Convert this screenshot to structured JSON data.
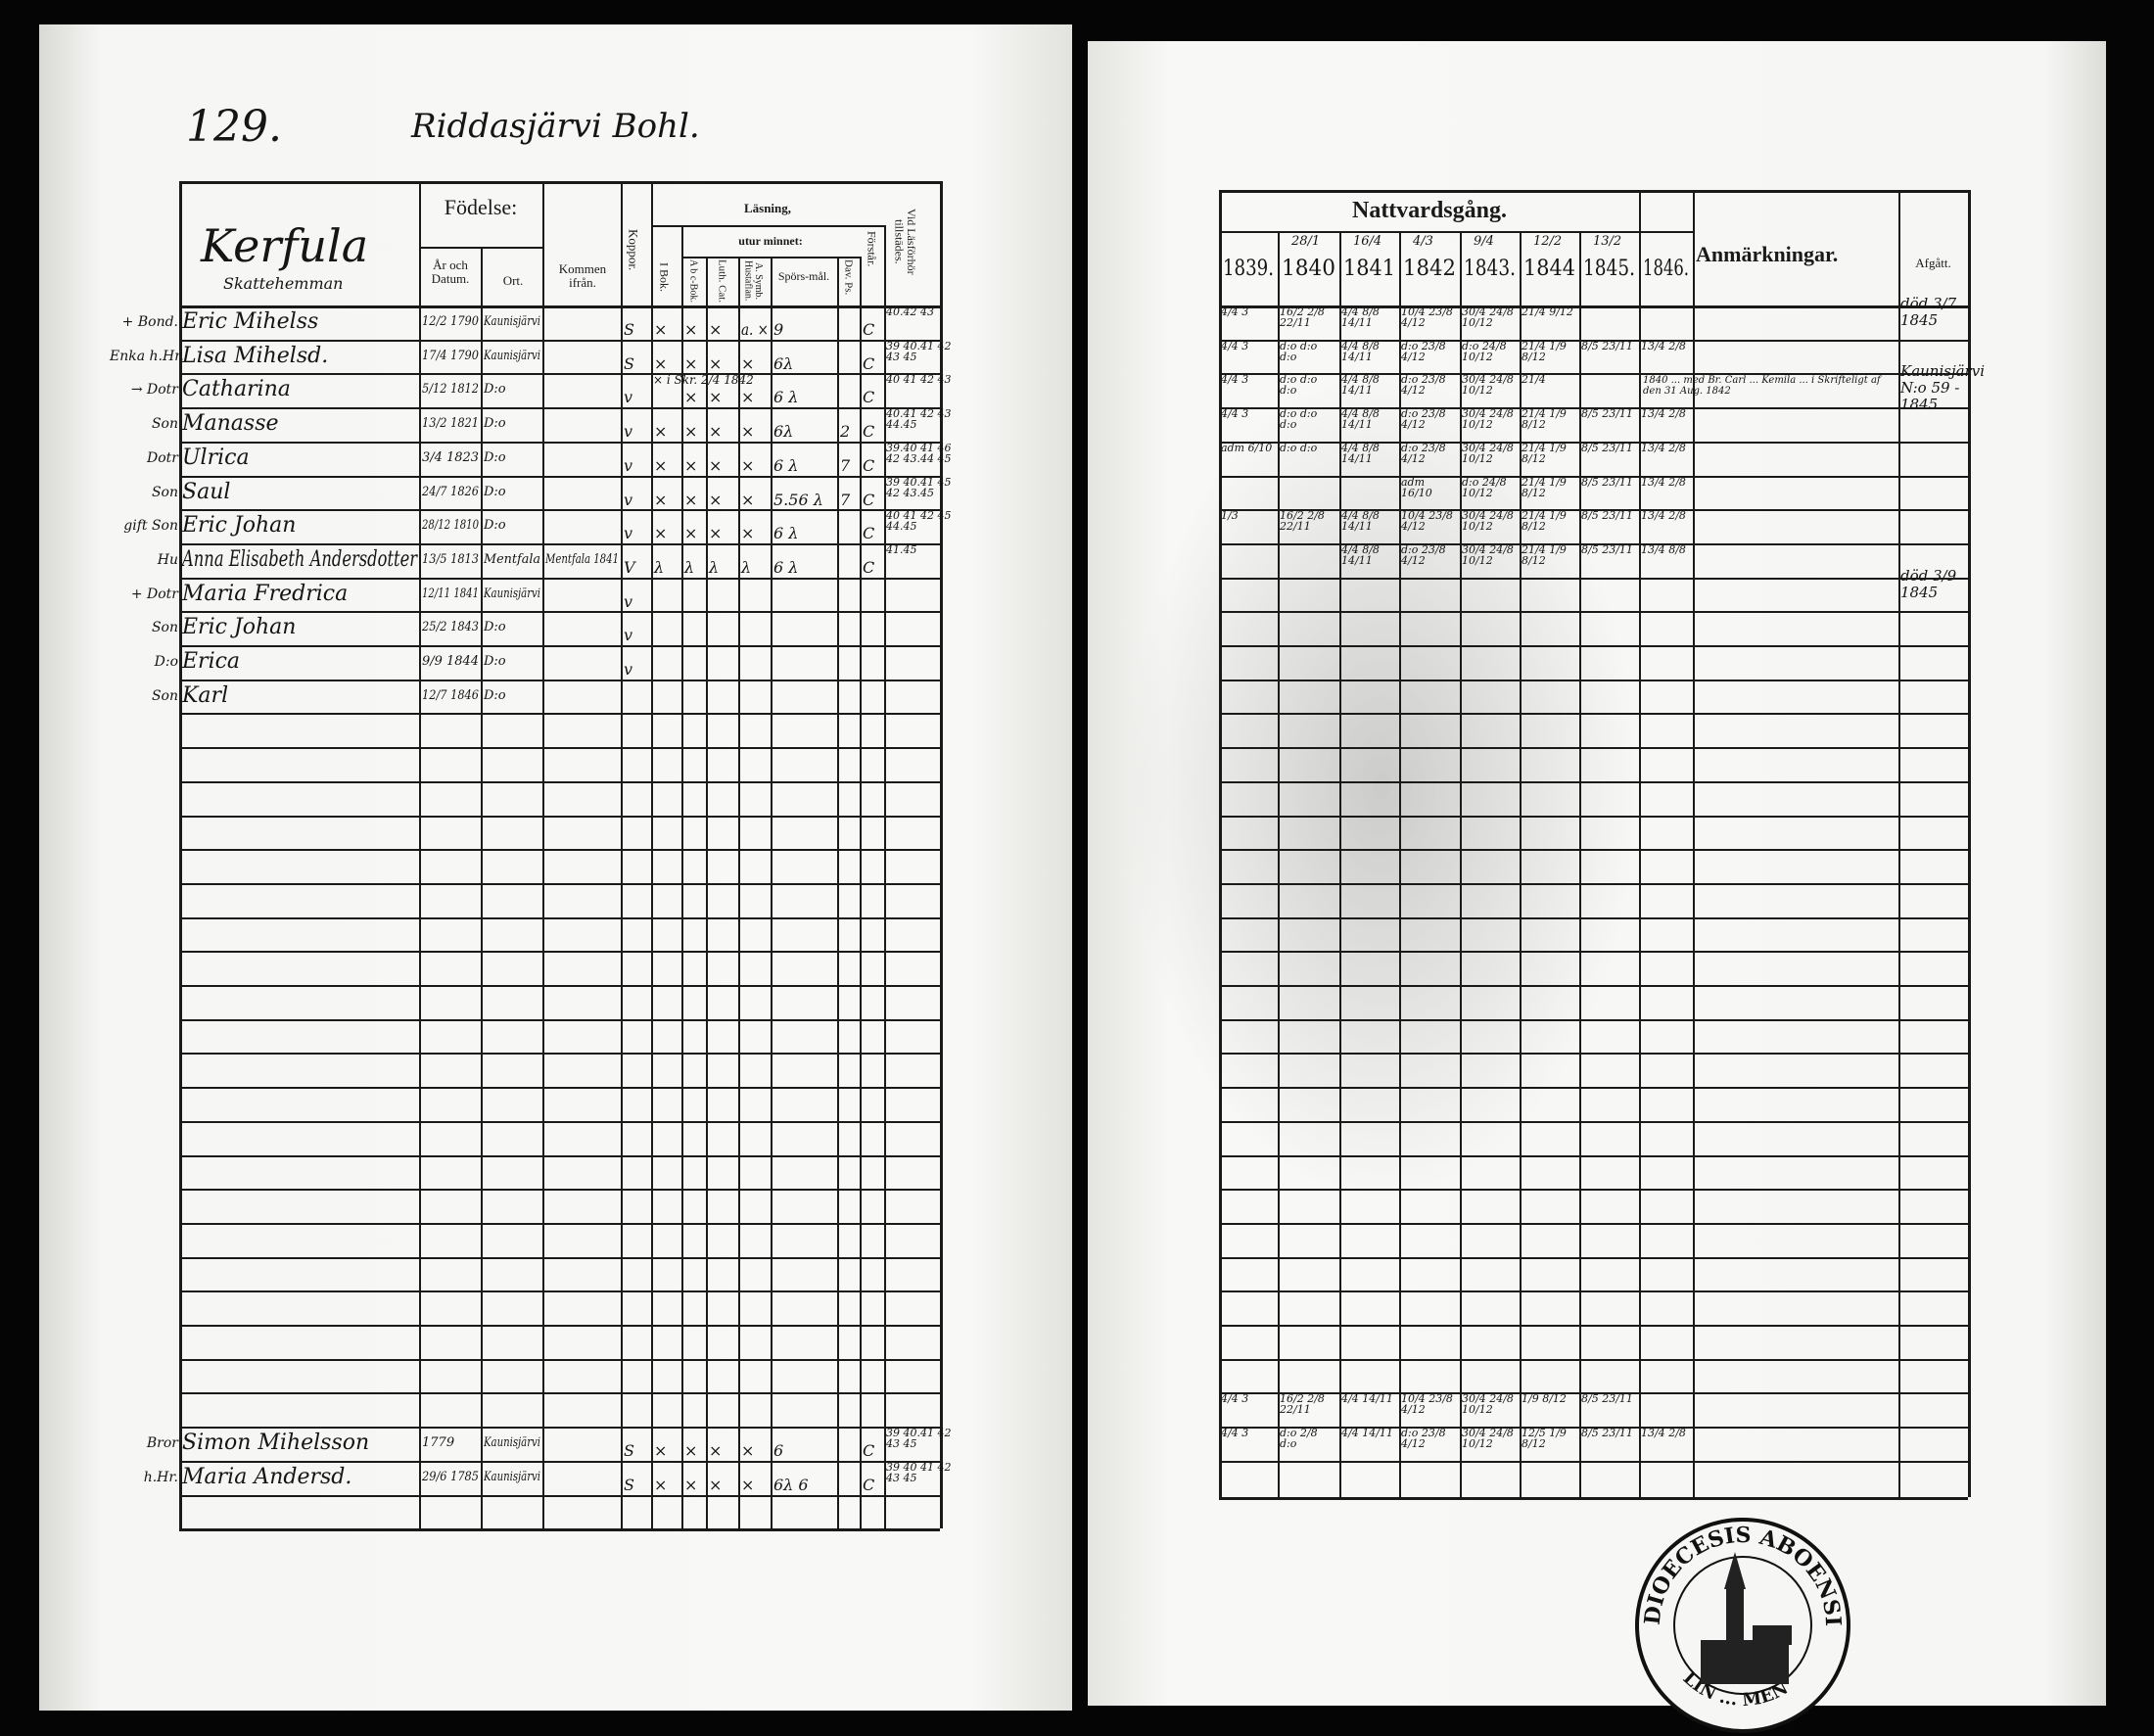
{
  "left": {
    "page_number": "129.",
    "village": "Riddasjärvi Bohl.",
    "header": {
      "farm_name": "Kerfula",
      "farm_type": "Skattehemman",
      "birth": "Födelse:",
      "birth_date": "År och Datum.",
      "birth_place": "Ort.",
      "came_from": "Kommen ifrån.",
      "vaccinated": "Koppor.",
      "reading": "Läsning,",
      "by_heart": "utur minnet:",
      "i_bok": "I Bok.",
      "abc_bok": "A b c-Bok.",
      "luth_cat": "Luth. Cat.",
      "a_symb": "A. Symb. Hustaflan.",
      "sporsmal": "Spörs-mål.",
      "dav_ps": "Dav. Ps.",
      "forstar": "Förstår.",
      "lasforhor": "Vid Läsförhör tillstädes."
    },
    "rows": [
      {
        "title": "+ Bond.",
        "name": "Eric Mihelss",
        "born": "12/2 1790",
        "place": "Kaunisjärvi",
        "came_from": "",
        "vaccinated": "S",
        "i_bok": "×",
        "abc_bok": "×",
        "luth_cat": "×",
        "a_symb": "a. ×",
        "sporsmal": "9",
        "dav_ps": "",
        "forstar": "C",
        "lasforhor": "40.42 43"
      },
      {
        "title": "Enka h.Hr.",
        "name": "Lisa Mihelsd.",
        "born": "17/4 1790",
        "place": "Kaunisjärvi",
        "came_from": "",
        "vaccinated": "S",
        "i_bok": "×",
        "abc_bok": "×",
        "luth_cat": "×",
        "a_symb": "×",
        "sporsmal": "6λ",
        "dav_ps": "",
        "forstar": "C",
        "lasforhor": "39 40.41 42 43 45"
      },
      {
        "title": "→ Dotr",
        "name": "Catharina",
        "born": "5/12 1812",
        "place": "D:o",
        "came_from": "",
        "vaccinated": "v",
        "i_bok": "× i Skr. 2/4 1842",
        "abc_bok": "×",
        "luth_cat": "×",
        "a_symb": "×",
        "sporsmal": "6 λ",
        "dav_ps": "",
        "forstar": "C",
        "lasforhor": "40 41 42 43"
      },
      {
        "title": "Son",
        "name": "Manasse",
        "born": "13/2 1821",
        "place": "D:o",
        "came_from": "",
        "vaccinated": "v",
        "i_bok": "×",
        "abc_bok": "×",
        "luth_cat": "×",
        "a_symb": "×",
        "sporsmal": "6λ",
        "dav_ps": "2",
        "forstar": "C",
        "lasforhor": "40.41 42 43 44.45"
      },
      {
        "title": "Dotr",
        "name": "Ulrica",
        "born": "3/4 1823",
        "place": "D:o",
        "came_from": "",
        "vaccinated": "v",
        "i_bok": "×",
        "abc_bok": "×",
        "luth_cat": "×",
        "a_symb": "×",
        "sporsmal": "6 λ",
        "dav_ps": "7",
        "forstar": "C",
        "lasforhor": "39.40 41 46 42 43.44 45"
      },
      {
        "title": "Son",
        "name": "Saul",
        "born": "24/7 1826",
        "place": "D:o",
        "came_from": "",
        "vaccinated": "v",
        "i_bok": "×",
        "abc_bok": "×",
        "luth_cat": "×",
        "a_symb": "×",
        "sporsmal": "5.56 λ",
        "dav_ps": "7",
        "forstar": "C",
        "lasforhor": "39 40.41 45 42 43.45"
      },
      {
        "title": "gift Son",
        "name": "Eric Johan",
        "born": "28/12 1810",
        "place": "D:o",
        "came_from": "",
        "vaccinated": "v",
        "i_bok": "×",
        "abc_bok": "×",
        "luth_cat": "×",
        "a_symb": "×",
        "sporsmal": "6 λ",
        "dav_ps": "",
        "forstar": "C",
        "lasforhor": "40 41 42 45 44.45"
      },
      {
        "title": "Hu",
        "name": "Anna Elisabeth Andersdotter",
        "born": "13/5 1813",
        "place": "Mentfala",
        "came_from": "Mentfala 1841",
        "vaccinated": "V",
        "i_bok": "λ",
        "abc_bok": "λ",
        "luth_cat": "λ",
        "a_symb": "λ",
        "sporsmal": "6 λ",
        "dav_ps": "",
        "forstar": "C",
        "lasforhor": "41.45"
      },
      {
        "title": "+ Dotr",
        "name": "Maria Fredrica",
        "born": "12/11 1841",
        "place": "Kaunisjärvi",
        "came_from": "",
        "vaccinated": "v",
        "i_bok": "",
        "abc_bok": "",
        "luth_cat": "",
        "a_symb": "",
        "sporsmal": "",
        "dav_ps": "",
        "forstar": "",
        "lasforhor": ""
      },
      {
        "title": "Son",
        "name": "Eric Johan",
        "born": "25/2 1843",
        "place": "D:o",
        "came_from": "",
        "vaccinated": "v",
        "i_bok": "",
        "abc_bok": "",
        "luth_cat": "",
        "a_symb": "",
        "sporsmal": "",
        "dav_ps": "",
        "forstar": "",
        "lasforhor": ""
      },
      {
        "title": "D:o",
        "name": "Erica",
        "born": "9/9 1844",
        "place": "D:o",
        "came_from": "",
        "vaccinated": "v",
        "i_bok": "",
        "abc_bok": "",
        "luth_cat": "",
        "a_symb": "",
        "sporsmal": "",
        "dav_ps": "",
        "forstar": "",
        "lasforhor": ""
      },
      {
        "title": "Son",
        "name": "Karl",
        "born": "12/7 1846",
        "place": "D:o",
        "came_from": "",
        "vaccinated": "",
        "i_bok": "",
        "abc_bok": "",
        "luth_cat": "",
        "a_symb": "",
        "sporsmal": "",
        "dav_ps": "",
        "forstar": "",
        "lasforhor": ""
      }
    ],
    "relatives": [
      {
        "title": "Bror",
        "name": "Simon Mihelsson",
        "born": "1779",
        "place": "Kaunisjärvi",
        "came_from": "",
        "vaccinated": "S",
        "i_bok": "×",
        "abc_bok": "×",
        "luth_cat": "×",
        "a_symb": "×",
        "sporsmal": "6",
        "dav_ps": "",
        "forstar": "C",
        "lasforhor": "39 40.41 42 43 45"
      },
      {
        "title": "h.Hr.",
        "name": "Maria Andersd.",
        "born": "29/6 1785",
        "place": "Kaunisjärvi",
        "came_from": "",
        "vaccinated": "S",
        "i_bok": "×",
        "abc_bok": "×",
        "luth_cat": "×",
        "a_symb": "×",
        "sporsmal": "6λ 6",
        "dav_ps": "",
        "forstar": "C",
        "lasforhor": "39 40 41 42 43 45"
      }
    ]
  },
  "right": {
    "header": {
      "communion": "Nattvardsgång.",
      "years": [
        {
          "date": "",
          "year": "1839."
        },
        {
          "date": "28/1",
          "year": "1840"
        },
        {
          "date": "16/4",
          "year": "1841"
        },
        {
          "date": "4/3",
          "year": "1842"
        },
        {
          "date": "9/4",
          "year": "1843."
        },
        {
          "date": "12/2",
          "year": "1844"
        },
        {
          "date": "13/2",
          "year": "1845."
        },
        {
          "date": "",
          "year": "1846."
        }
      ],
      "remarks": "Anmärkningar.",
      "departed": "Afgått."
    },
    "rows": [
      {
        "y": [
          "4/4 3",
          "16/2 2/8 22/11",
          "4/4 8/8 14/11",
          "10/4 23/8 4/12",
          "30/4 24/8 10/12",
          "21/4 9/12",
          "",
          ""
        ],
        "remarks": "",
        "departed": "död 3/7 1845"
      },
      {
        "y": [
          "4/4 3",
          "d:o d:o d:o",
          "4/4 8/8 14/11",
          "d:o 23/8 4/12",
          "d:o 24/8 10/12",
          "21/4 1/9 8/12",
          "8/5 23/11",
          "13/4 2/8"
        ],
        "remarks": "",
        "departed": ""
      },
      {
        "y": [
          "4/4 3",
          "d:o d:o d:o",
          "4/4 8/8 14/11",
          "d:o 23/8 4/12",
          "30/4 24/8 10/12",
          "21/4",
          "",
          ""
        ],
        "remarks": "1840 ... med Br. Carl ... Kemila ... i Skrifteligt af den 31 Aug. 1842",
        "departed": "Kaunisjärvi N:o 59 - 1845"
      },
      {
        "y": [
          "4/4 3",
          "d:o d:o d:o",
          "4/4 8/8 14/11",
          "d:o 23/8 4/12",
          "30/4 24/8 10/12",
          "21/4 1/9 8/12",
          "8/5 23/11",
          "13/4 2/8"
        ],
        "remarks": "",
        "departed": ""
      },
      {
        "y": [
          "adm 6/10",
          "d:o d:o",
          "4/4 8/8 14/11",
          "d:o 23/8 4/12",
          "30/4 24/8 10/12",
          "21/4 1/9 8/12",
          "8/5 23/11",
          "13/4 2/8"
        ],
        "remarks": "",
        "departed": ""
      },
      {
        "y": [
          "",
          "",
          "",
          "adm 16/10",
          "d:o 24/8 10/12",
          "21/4 1/9 8/12",
          "8/5 23/11",
          "13/4 2/8"
        ],
        "remarks": "",
        "departed": ""
      },
      {
        "y": [
          "1/3",
          "16/2 2/8 22/11",
          "4/4 8/8 14/11",
          "10/4 23/8 4/12",
          "30/4 24/8 10/12",
          "21/4 1/9 8/12",
          "8/5 23/11",
          "13/4 2/8"
        ],
        "remarks": "",
        "departed": ""
      },
      {
        "y": [
          "",
          "",
          "4/4 8/8 14/11",
          "d:o 23/8 4/12",
          "30/4 24/8 10/12",
          "21/4 1/9 8/12",
          "8/5 23/11",
          "13/4 8/8"
        ],
        "remarks": "",
        "departed": ""
      },
      {
        "y": [
          "",
          "",
          "",
          "",
          "",
          "",
          "",
          ""
        ],
        "remarks": "",
        "departed": "död 3/9 1845"
      }
    ],
    "relatives": [
      {
        "y": [
          "4/4 3",
          "16/2 2/8 22/11",
          "4/4 14/11",
          "10/4 23/8 4/12",
          "30/4 24/8 10/12",
          "1/9 8/12",
          "8/5 23/11",
          ""
        ],
        "remarks": "",
        "departed": ""
      },
      {
        "y": [
          "4/4 3",
          "d:o 2/8 d:o",
          "4/4 14/11",
          "d:o 23/8 4/12",
          "30/4 24/8 10/12",
          "12/5 1/9 8/12",
          "8/5 23/11",
          "13/4 2/8"
        ],
        "remarks": "",
        "departed": ""
      }
    ]
  },
  "stamp": {
    "text_top": "DIOECESIS ABOENSIS",
    "text_bottom": "LIN ... MEN"
  }
}
